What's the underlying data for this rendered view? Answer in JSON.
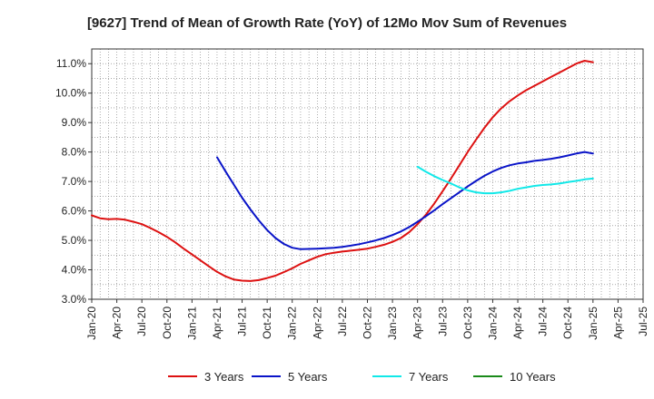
{
  "chart_data": {
    "type": "line",
    "title": "[9627]  Trend of Mean of Growth Rate (YoY) of 12Mo Mov Sum of Revenues",
    "xlabel": "",
    "ylabel": "",
    "ylim": [
      3.0,
      11.5
    ],
    "y_ticks": [
      "3.0%",
      "4.0%",
      "5.0%",
      "6.0%",
      "7.0%",
      "8.0%",
      "9.0%",
      "10.0%",
      "11.0%"
    ],
    "y_tick_values": [
      3,
      4,
      5,
      6,
      7,
      8,
      9,
      10,
      11
    ],
    "x_ticks": [
      "Jan-20",
      "Apr-20",
      "Jul-20",
      "Oct-20",
      "Jan-21",
      "Apr-21",
      "Jul-21",
      "Oct-21",
      "Jan-22",
      "Apr-22",
      "Jul-22",
      "Oct-22",
      "Jan-23",
      "Apr-23",
      "Jul-23",
      "Oct-23",
      "Jan-24",
      "Apr-24",
      "Jul-24",
      "Oct-24",
      "Jan-25",
      "Apr-25",
      "Jul-25"
    ],
    "x_range_months": [
      0,
      66
    ],
    "grid": true,
    "legend_position": "bottom",
    "series": [
      {
        "name": "3 Years",
        "color": "#dd1111",
        "x_months": [
          0,
          1,
          2,
          3,
          4,
          5,
          6,
          7,
          8,
          9,
          10,
          11,
          12,
          13,
          14,
          15,
          16,
          17,
          18,
          19,
          20,
          21,
          22,
          23,
          24,
          25,
          26,
          27,
          28,
          29,
          30,
          31,
          32,
          33,
          34,
          35,
          36,
          37,
          38,
          39,
          40,
          41,
          42,
          43,
          44,
          45,
          46,
          47,
          48,
          49,
          50,
          51,
          52,
          53,
          54,
          55,
          56,
          57,
          58,
          59,
          60
        ],
        "values": [
          5.85,
          5.75,
          5.72,
          5.73,
          5.7,
          5.63,
          5.55,
          5.42,
          5.28,
          5.12,
          4.93,
          4.72,
          4.52,
          4.32,
          4.12,
          3.93,
          3.78,
          3.67,
          3.63,
          3.62,
          3.65,
          3.72,
          3.8,
          3.92,
          4.05,
          4.2,
          4.32,
          4.44,
          4.53,
          4.58,
          4.62,
          4.65,
          4.68,
          4.72,
          4.78,
          4.85,
          4.95,
          5.08,
          5.28,
          5.55,
          5.87,
          6.25,
          6.67,
          7.1,
          7.55,
          8.0,
          8.42,
          8.82,
          9.18,
          9.48,
          9.72,
          9.92,
          10.1,
          10.25,
          10.4,
          10.55,
          10.7,
          10.85,
          11.0,
          11.1,
          11.05
        ]
      },
      {
        "name": "5 Years",
        "color": "#0a14c8",
        "x_months": [
          15,
          16,
          17,
          18,
          19,
          20,
          21,
          22,
          23,
          24,
          25,
          26,
          27,
          28,
          29,
          30,
          31,
          32,
          33,
          34,
          35,
          36,
          37,
          38,
          39,
          40,
          41,
          42,
          43,
          44,
          45,
          46,
          47,
          48,
          49,
          50,
          51,
          52,
          53,
          54,
          55,
          56,
          57,
          58,
          59,
          60
        ],
        "values": [
          7.82,
          7.35,
          6.9,
          6.45,
          6.05,
          5.68,
          5.35,
          5.08,
          4.88,
          4.75,
          4.7,
          4.71,
          4.72,
          4.73,
          4.75,
          4.78,
          4.82,
          4.87,
          4.93,
          5.0,
          5.08,
          5.18,
          5.3,
          5.45,
          5.63,
          5.82,
          6.02,
          6.23,
          6.43,
          6.63,
          6.83,
          7.02,
          7.19,
          7.34,
          7.46,
          7.55,
          7.61,
          7.65,
          7.7,
          7.73,
          7.77,
          7.82,
          7.88,
          7.95,
          8.0,
          7.95
        ]
      },
      {
        "name": "7 Years",
        "color": "#11e8e8",
        "x_months": [
          39,
          40,
          41,
          42,
          43,
          44,
          45,
          46,
          47,
          48,
          49,
          50,
          51,
          52,
          53,
          54,
          55,
          56,
          57,
          58,
          59,
          60
        ],
        "values": [
          7.5,
          7.33,
          7.18,
          7.05,
          6.93,
          6.8,
          6.7,
          6.63,
          6.6,
          6.6,
          6.63,
          6.68,
          6.75,
          6.8,
          6.85,
          6.88,
          6.9,
          6.93,
          6.98,
          7.02,
          7.07,
          7.1
        ]
      },
      {
        "name": "10 Years",
        "color": "#1a8a1a",
        "x_months": [],
        "values": []
      }
    ]
  }
}
